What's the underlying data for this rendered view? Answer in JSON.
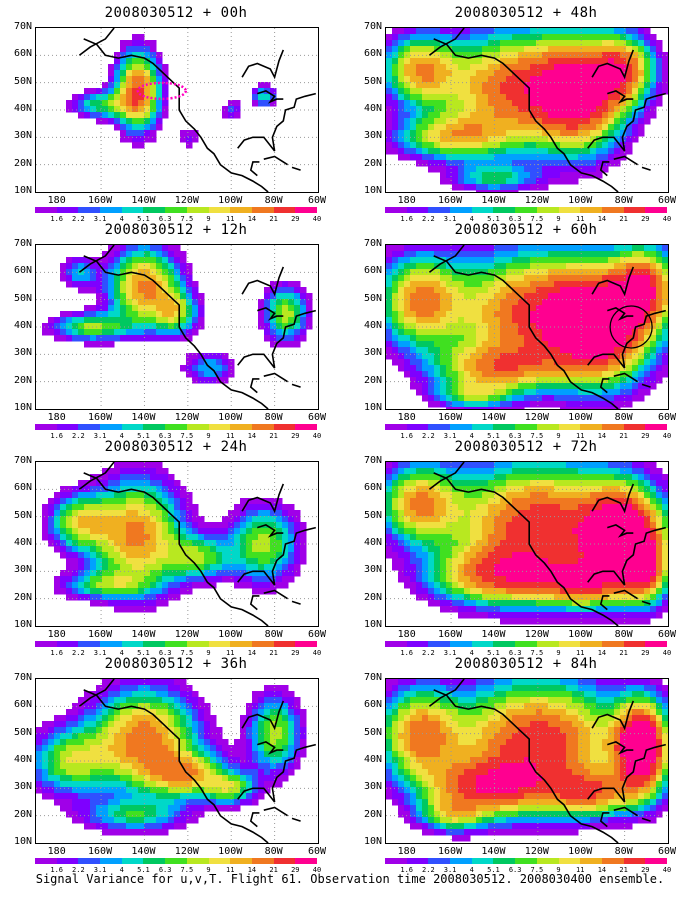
{
  "panels": [
    {
      "title": "2008030512 + 00h",
      "stage": 0,
      "flight_track": true,
      "circle": false
    },
    {
      "title": "2008030512 + 48h",
      "stage": 4,
      "flight_track": false,
      "circle": false
    },
    {
      "title": "2008030512 + 12h",
      "stage": 1,
      "flight_track": false,
      "circle": false
    },
    {
      "title": "2008030512 + 60h",
      "stage": 5,
      "flight_track": false,
      "circle": true
    },
    {
      "title": "2008030512 + 24h",
      "stage": 2,
      "flight_track": false,
      "circle": false
    },
    {
      "title": "2008030512 + 72h",
      "stage": 6,
      "flight_track": false,
      "circle": false
    },
    {
      "title": "2008030512 + 36h",
      "stage": 3,
      "flight_track": false,
      "circle": false
    },
    {
      "title": "2008030512 + 84h",
      "stage": 7,
      "flight_track": false,
      "circle": false
    }
  ],
  "lat_labels": [
    "70N",
    "60N",
    "50N",
    "40N",
    "30N",
    "20N",
    "10N"
  ],
  "lon_labels": [
    "180",
    "160W",
    "140W",
    "120W",
    "100W",
    "80W",
    "60W"
  ],
  "colorbar": {
    "labels": [
      "1.6",
      "2.2",
      "3.1",
      "4",
      "5.1",
      "6.3",
      "7.5",
      "9",
      "11",
      "14",
      "21",
      "29",
      "40"
    ],
    "colors": [
      "#ffffff",
      "#a000e8",
      "#7e00ff",
      "#3050ff",
      "#00a0ff",
      "#00d8c8",
      "#00c860",
      "#40e020",
      "#b8e820",
      "#f0e040",
      "#f0b020",
      "#f07820",
      "#f03030",
      "#ff0090"
    ]
  },
  "caption": "Signal Variance for u,v,T. Flight 61. Observation time 2008030512. 2008030400 ensemble."
}
